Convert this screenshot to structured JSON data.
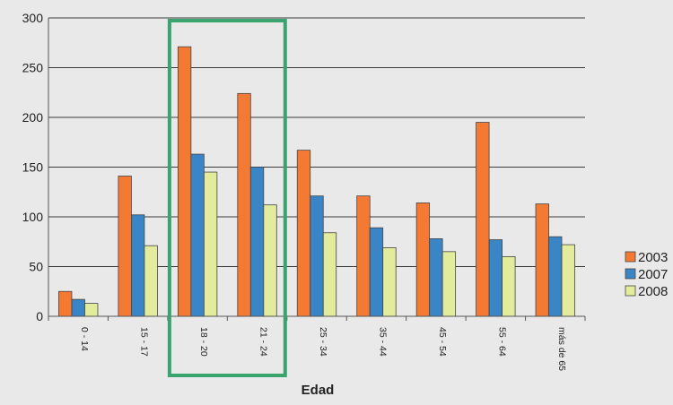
{
  "chart_data": {
    "type": "bar",
    "xlabel": "Edad",
    "ylabel": "",
    "ylim": [
      0,
      300
    ],
    "yticks": [
      0,
      50,
      100,
      150,
      200,
      250,
      300
    ],
    "grid": true,
    "legend": "right",
    "categories": [
      "0 - 14",
      "15 - 17",
      "18 - 20",
      "21 - 24",
      "25 - 34",
      "35 - 44",
      "45 - 54",
      "55 - 64",
      "más de 65"
    ],
    "series": [
      {
        "name": "2003",
        "color": "#f47a33",
        "values": [
          25,
          141,
          271,
          224,
          167,
          121,
          114,
          195,
          113
        ]
      },
      {
        "name": "2007",
        "color": "#3a85c6",
        "values": [
          17,
          102,
          163,
          150,
          121,
          89,
          78,
          77,
          80
        ]
      },
      {
        "name": "2008",
        "color": "#e3eb9c",
        "values": [
          13,
          71,
          145,
          112,
          84,
          69,
          65,
          60,
          72
        ]
      }
    ],
    "highlight": {
      "categories": [
        "18 - 20",
        "21 - 24"
      ],
      "color": "#3aa46e"
    }
  }
}
